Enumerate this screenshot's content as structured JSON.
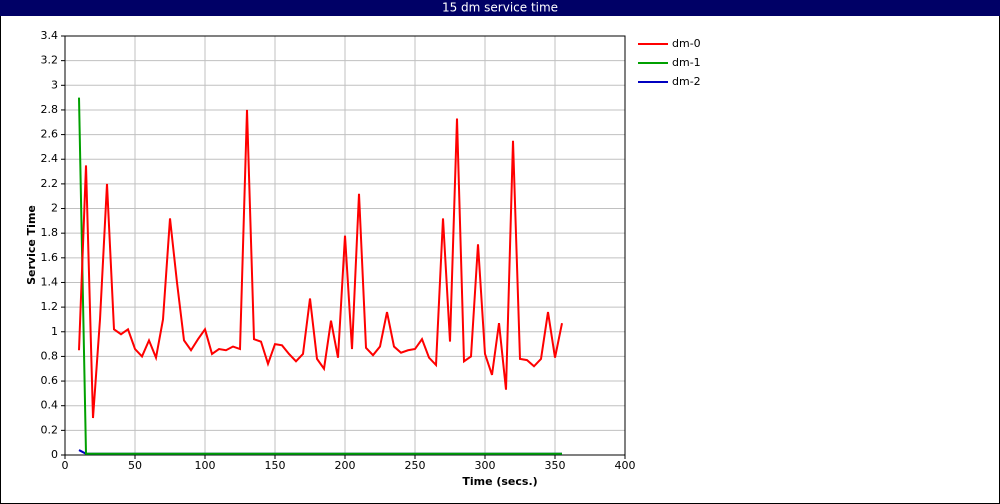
{
  "chart_data": {
    "type": "line",
    "title": "15 dm service time",
    "xlabel": "Time (secs.)",
    "ylabel": "Service Time",
    "x": [
      10,
      15,
      20,
      25,
      30,
      35,
      40,
      45,
      50,
      55,
      60,
      65,
      70,
      75,
      80,
      85,
      90,
      95,
      100,
      105,
      110,
      115,
      120,
      125,
      130,
      135,
      140,
      145,
      150,
      155,
      160,
      165,
      170,
      175,
      180,
      185,
      190,
      195,
      200,
      205,
      210,
      215,
      220,
      225,
      230,
      235,
      240,
      245,
      250,
      255,
      260,
      265,
      270,
      275,
      280,
      285,
      290,
      295,
      300,
      305,
      310,
      315,
      320,
      325,
      330,
      335,
      340,
      345,
      350,
      355
    ],
    "series": [
      {
        "name": "dm-0",
        "color": "#ff0000",
        "values": [
          0.85,
          2.35,
          0.3,
          1.1,
          2.2,
          1.02,
          0.98,
          1.02,
          0.86,
          0.8,
          0.93,
          0.79,
          1.1,
          1.92,
          1.4,
          0.93,
          0.85,
          0.94,
          1.02,
          0.82,
          0.86,
          0.85,
          0.88,
          0.86,
          2.8,
          0.94,
          0.92,
          0.74,
          0.9,
          0.89,
          0.82,
          0.76,
          0.82,
          1.27,
          0.78,
          0.7,
          1.09,
          0.79,
          1.78,
          0.86,
          2.12,
          0.87,
          0.81,
          0.88,
          1.16,
          0.88,
          0.83,
          0.85,
          0.86,
          0.94,
          0.79,
          0.73,
          1.92,
          0.92,
          2.73,
          0.76,
          0.8,
          1.71,
          0.82,
          0.65,
          1.07,
          0.53,
          2.55,
          0.78,
          0.77,
          0.72,
          0.78,
          1.16,
          0.79,
          1.07
        ]
      },
      {
        "name": "dm-1",
        "color": "#00a000",
        "values": [
          2.9,
          0.01,
          0.01,
          0.01,
          0.01,
          0.01,
          0.01,
          0.01,
          0.01,
          0.01,
          0.01,
          0.01,
          0.01,
          0.01,
          0.01,
          0.01,
          0.01,
          0.01,
          0.01,
          0.01,
          0.01,
          0.01,
          0.01,
          0.01,
          0.01,
          0.01,
          0.01,
          0.01,
          0.01,
          0.01,
          0.01,
          0.01,
          0.01,
          0.01,
          0.01,
          0.01,
          0.01,
          0.01,
          0.01,
          0.01,
          0.01,
          0.01,
          0.01,
          0.01,
          0.01,
          0.01,
          0.01,
          0.01,
          0.01,
          0.01,
          0.01,
          0.01,
          0.01,
          0.01,
          0.01,
          0.01,
          0.01,
          0.01,
          0.01,
          0.01,
          0.01,
          0.01,
          0.01,
          0.01,
          0.01,
          0.01,
          0.01,
          0.01,
          0.01,
          0.01
        ]
      },
      {
        "name": "dm-2",
        "color": "#0000c0",
        "values": [
          0.04,
          0.01,
          0.01,
          0.01,
          0.01,
          0.01,
          0.01,
          0.01,
          0.01,
          0.01,
          0.01,
          0.01,
          0.01,
          0.01,
          0.01,
          0.01,
          0.01,
          0.01,
          0.01,
          0.01,
          0.01,
          0.01,
          0.01,
          0.01,
          0.01,
          0.01,
          0.01,
          0.01,
          0.01,
          0.01,
          0.01,
          0.01,
          0.01,
          0.01,
          0.01,
          0.01,
          0.01,
          0.01,
          0.01,
          0.01,
          0.01,
          0.01,
          0.01,
          0.01,
          0.01,
          0.01,
          0.01,
          0.01,
          0.01,
          0.01,
          0.01,
          0.01,
          0.01,
          0.01,
          0.01,
          0.01,
          0.01,
          0.01,
          0.01,
          0.01,
          0.01,
          0.01,
          0.01,
          0.01,
          0.01,
          0.01,
          0.01,
          0.01,
          0.01,
          0.01
        ]
      }
    ],
    "xlim": [
      0,
      400
    ],
    "xticks": [
      0,
      50,
      100,
      150,
      200,
      250,
      300,
      350,
      400
    ],
    "ylim": [
      0,
      3.4
    ],
    "yticks": [
      0,
      0.2,
      0.4,
      0.6,
      0.8,
      1,
      1.2,
      1.4,
      1.6,
      1.8,
      2,
      2.2,
      2.4,
      2.6,
      2.8,
      3,
      3.2,
      3.4
    ],
    "grid": true,
    "legend": "right"
  }
}
